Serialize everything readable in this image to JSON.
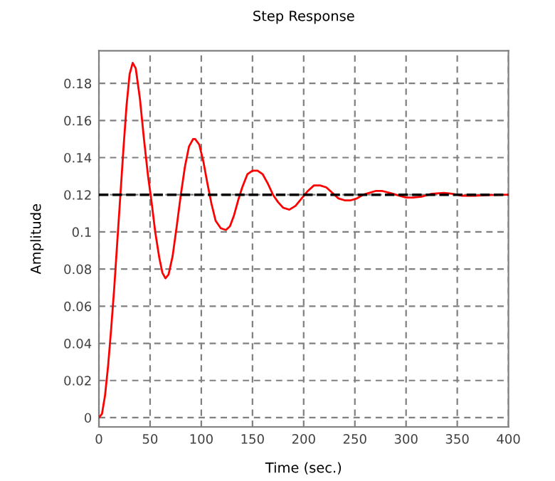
{
  "chart_data": {
    "type": "line",
    "title": "Step Response",
    "xlabel": "Time (sec.)",
    "ylabel": "Amplitude",
    "xlim": [
      0,
      400
    ],
    "ylim": [
      -0.005,
      0.1975
    ],
    "xticks": [
      0,
      50,
      100,
      150,
      200,
      250,
      300,
      350,
      400
    ],
    "yticks": [
      0,
      0.02,
      0.04,
      0.06,
      0.08,
      0.1,
      0.12,
      0.14,
      0.16,
      0.18
    ],
    "grid": true,
    "line_style": "solid",
    "ref_lines": [
      {
        "axis": "y",
        "value": 0.12,
        "label": null,
        "color": "#000000",
        "line_style": "dashed"
      }
    ],
    "series": [
      {
        "color": "#ff0000",
        "x": [
          0,
          3,
          6,
          9,
          12,
          15,
          18,
          21,
          24,
          27,
          30,
          33,
          36,
          40,
          44,
          48,
          51,
          55,
          59,
          62,
          65,
          68,
          72,
          76,
          80,
          84,
          88,
          92,
          94,
          98,
          102,
          106,
          110,
          114,
          119,
          124,
          128,
          132,
          136,
          140,
          145,
          150,
          155,
          160,
          165,
          170,
          175,
          180,
          186,
          192,
          198,
          204,
          210,
          216,
          222,
          228,
          234,
          240,
          246,
          252,
          258,
          264,
          270,
          277,
          284,
          290,
          300,
          307,
          315,
          325,
          337,
          345,
          355,
          367,
          380,
          400
        ],
        "values": [
          0,
          0.002,
          0.012,
          0.028,
          0.048,
          0.07,
          0.095,
          0.12,
          0.145,
          0.168,
          0.185,
          0.191,
          0.188,
          0.172,
          0.15,
          0.13,
          0.118,
          0.1,
          0.086,
          0.078,
          0.075,
          0.077,
          0.087,
          0.103,
          0.12,
          0.135,
          0.146,
          0.15,
          0.15,
          0.147,
          0.138,
          0.126,
          0.115,
          0.106,
          0.102,
          0.101,
          0.103,
          0.109,
          0.117,
          0.124,
          0.131,
          0.133,
          0.133,
          0.131,
          0.126,
          0.12,
          0.116,
          0.113,
          0.112,
          0.114,
          0.118,
          0.122,
          0.125,
          0.125,
          0.124,
          0.121,
          0.118,
          0.117,
          0.117,
          0.118,
          0.12,
          0.121,
          0.122,
          0.122,
          0.121,
          0.12,
          0.1185,
          0.1185,
          0.119,
          0.1205,
          0.121,
          0.1205,
          0.1195,
          0.1195,
          0.1198,
          0.12
        ]
      }
    ]
  }
}
